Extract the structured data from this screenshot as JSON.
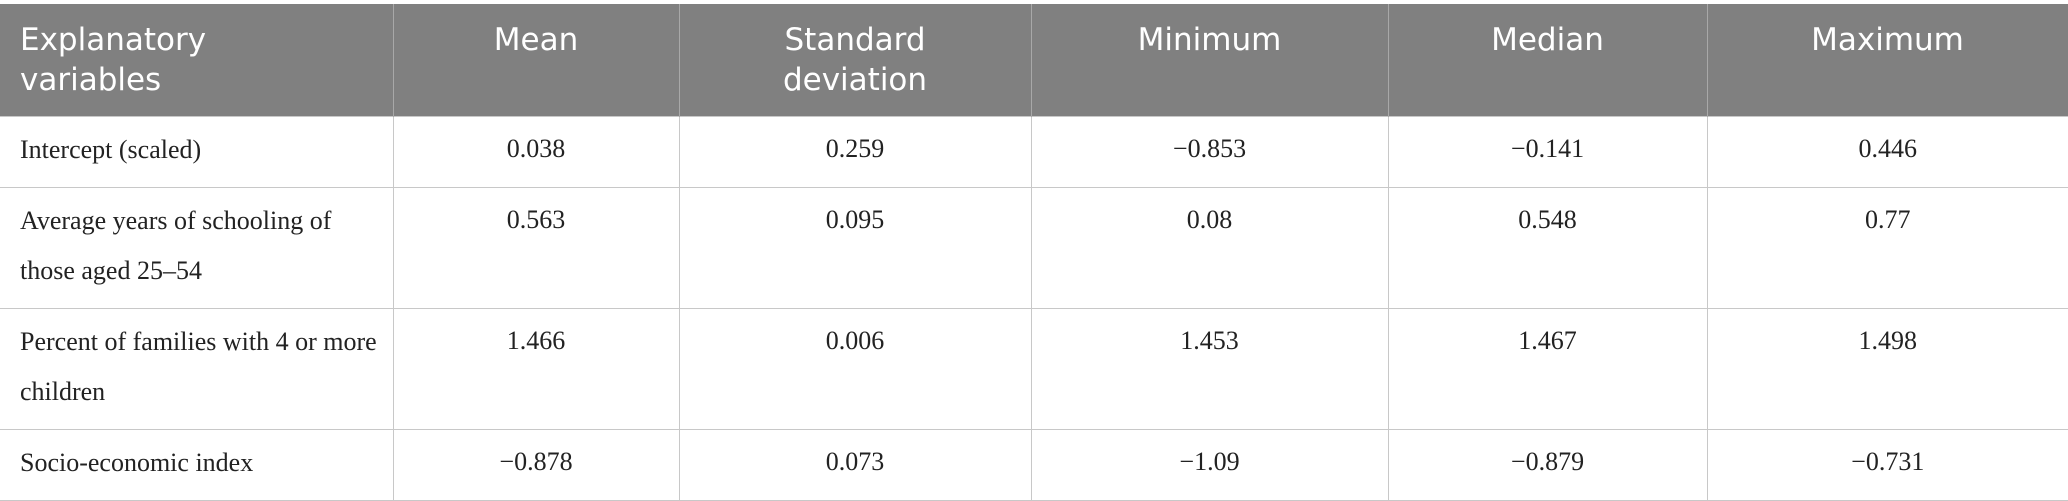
{
  "table": {
    "header": [
      "Explanatory variables",
      "Mean",
      "Standard deviation",
      "Minimum",
      "Median",
      "Maximum"
    ],
    "rows": [
      [
        "Intercept (scaled)",
        "0.038",
        "0.259",
        "−0.853",
        "−0.141",
        "0.446"
      ],
      [
        "Average years of schooling of those aged 25–54",
        "0.563",
        "0.095",
        "0.08",
        "0.548",
        "0.77"
      ],
      [
        "Percent of families with 4 or more children",
        "1.466",
        "0.006",
        "1.453",
        "1.467",
        "1.498"
      ],
      [
        "Socio-economic index",
        "−0.878",
        "0.073",
        "−1.09",
        "−0.879",
        "−0.731"
      ]
    ]
  }
}
